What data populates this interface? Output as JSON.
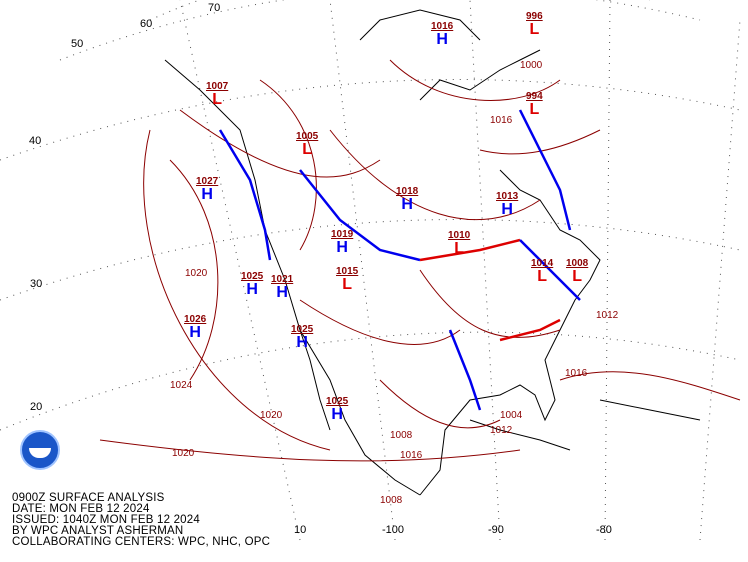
{
  "caption": {
    "line1": "0900Z SURFACE ANALYSIS",
    "line2": "DATE: MON FEB 12 2024",
    "line3": "ISSUED: 1040Z MON FEB 12 2024",
    "line4": "BY WPC ANALYST ASHERMAN",
    "line5": "COLLABORATING CENTERS: WPC, NHC, OPC"
  },
  "latitude_labels": [
    "20",
    "30",
    "40",
    "50",
    "60",
    "70"
  ],
  "longitude_labels": [
    "-100",
    "-90",
    "-80",
    "10"
  ],
  "pressure_centers": [
    {
      "type": "H",
      "pressure": "1027"
    },
    {
      "type": "H",
      "pressure": "1026"
    },
    {
      "type": "H",
      "pressure": "1025"
    },
    {
      "type": "H",
      "pressure": "1019"
    },
    {
      "type": "H",
      "pressure": "1018"
    },
    {
      "type": "L",
      "pressure": "1005"
    },
    {
      "type": "L",
      "pressure": "1010"
    },
    {
      "type": "L",
      "pressure": "1008"
    },
    {
      "type": "L",
      "pressure": "994"
    },
    {
      "type": "L",
      "pressure": "996"
    },
    {
      "type": "H",
      "pressure": "1021"
    },
    {
      "type": "H",
      "pressure": "1025"
    },
    {
      "type": "L",
      "pressure": "1015"
    },
    {
      "type": "H",
      "pressure": "1013"
    },
    {
      "type": "L",
      "pressure": "1014"
    },
    {
      "type": "H",
      "pressure": "1016"
    },
    {
      "type": "L",
      "pressure": "1007"
    },
    {
      "type": "H",
      "pressure": "1025"
    }
  ],
  "isobar_labels": [
    "1020",
    "1024",
    "1020",
    "1016",
    "1012",
    "1008",
    "1004",
    "1000",
    "1016",
    "1020",
    "1012",
    "1016",
    "1008"
  ],
  "colors": {
    "isobar": "#8b0000",
    "high": "#0000ee",
    "low": "#dd0000",
    "cold_front": "#0000ee",
    "warm_front": "#dd0000",
    "coast": "#000000"
  }
}
